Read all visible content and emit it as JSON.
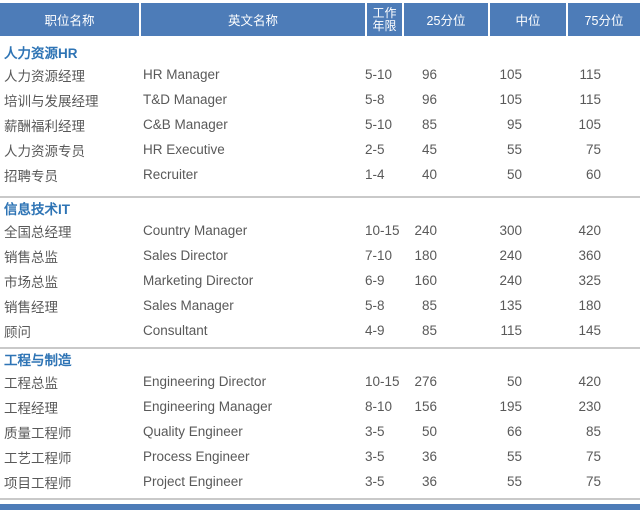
{
  "colors": {
    "header_background": "#4D7CB8",
    "header_text": "#FFFFFF",
    "section_title_text": "#2E74B5",
    "body_text": "#595959",
    "divider_line": "#C9C9C9",
    "bottom_bar": "#4D7CB8"
  },
  "table": {
    "headers": [
      "职位名称",
      "英文名称",
      "工作年限",
      "25分位",
      "中位",
      "75分位"
    ],
    "sections": [
      {
        "title": "人力资源HR",
        "rows": [
          [
            "人力资源经理",
            "HR Manager",
            "5-10",
            "96",
            "105",
            "115"
          ],
          [
            "培训与发展经理",
            "T&D Manager",
            "5-8",
            "96",
            "105",
            "115"
          ],
          [
            "薪酬福利经理",
            "C&B Manager",
            "5-10",
            "85",
            "95",
            "105"
          ],
          [
            "人力资源专员",
            "HR Executive",
            "2-5",
            "45",
            "55",
            "75"
          ],
          [
            "招聘专员",
            "Recruiter",
            "1-4",
            "40",
            "50",
            "60"
          ]
        ]
      },
      {
        "title": "信息技术IT",
        "rows": [
          [
            "全国总经理",
            "Country Manager",
            "10-15",
            "240",
            "300",
            "420"
          ],
          [
            "销售总监",
            "Sales Director",
            "7-10",
            "180",
            "240",
            "360"
          ],
          [
            "市场总监",
            "Marketing Director",
            "6-9",
            "160",
            "240",
            "325"
          ],
          [
            "销售经理",
            "Sales Manager",
            "5-8",
            "85",
            "135",
            "180"
          ],
          [
            "顾问",
            "Consultant",
            "4-9",
            "85",
            "115",
            "145"
          ]
        ]
      },
      {
        "title": "工程与制造",
        "rows": [
          [
            "工程总监",
            "Engineering Director",
            "10-15",
            "276",
            "50",
            "420"
          ],
          [
            "工程经理",
            "Engineering Manager",
            "8-10",
            "156",
            "195",
            "230"
          ],
          [
            "质量工程师",
            "Quality Engineer",
            "3-5",
            "50",
            "66",
            "85"
          ],
          [
            "工艺工程师",
            "Process Engineer",
            "3-5",
            "36",
            "55",
            "75"
          ],
          [
            "项目工程师",
            "Project Engineer",
            "3-5",
            "36",
            "55",
            "75"
          ]
        ]
      }
    ]
  },
  "chart_data": {
    "type": "table",
    "title": "",
    "columns": [
      "职位名称",
      "英文名称",
      "工作年限",
      "25分位",
      "中位",
      "75分位"
    ],
    "groups": [
      {
        "group": "人力资源HR",
        "rows": [
          [
            "人力资源经理",
            "HR Manager",
            "5-10",
            96,
            105,
            115
          ],
          [
            "培训与发展经理",
            "T&D Manager",
            "5-8",
            96,
            105,
            115
          ],
          [
            "薪酬福利经理",
            "C&B Manager",
            "5-10",
            85,
            95,
            105
          ],
          [
            "人力资源专员",
            "HR Executive",
            "2-5",
            45,
            55,
            75
          ],
          [
            "招聘专员",
            "Recruiter",
            "1-4",
            40,
            50,
            60
          ]
        ]
      },
      {
        "group": "信息技术IT",
        "rows": [
          [
            "全国总经理",
            "Country Manager",
            "10-15",
            240,
            300,
            420
          ],
          [
            "销售总监",
            "Sales Director",
            "7-10",
            180,
            240,
            360
          ],
          [
            "市场总监",
            "Marketing Director",
            "6-9",
            160,
            240,
            325
          ],
          [
            "销售经理",
            "Sales Manager",
            "5-8",
            85,
            135,
            180
          ],
          [
            "顾问",
            "Consultant",
            "4-9",
            85,
            115,
            145
          ]
        ]
      },
      {
        "group": "工程与制造",
        "rows": [
          [
            "工程总监",
            "Engineering Director",
            "10-15",
            276,
            50,
            420
          ],
          [
            "工程经理",
            "Engineering Manager",
            "8-10",
            156,
            195,
            230
          ],
          [
            "质量工程师",
            "Quality Engineer",
            "3-5",
            50,
            66,
            85
          ],
          [
            "工艺工程师",
            "Process Engineer",
            "3-5",
            36,
            55,
            75
          ],
          [
            "项目工程师",
            "Project Engineer",
            "3-5",
            36,
            55,
            75
          ]
        ]
      }
    ]
  }
}
